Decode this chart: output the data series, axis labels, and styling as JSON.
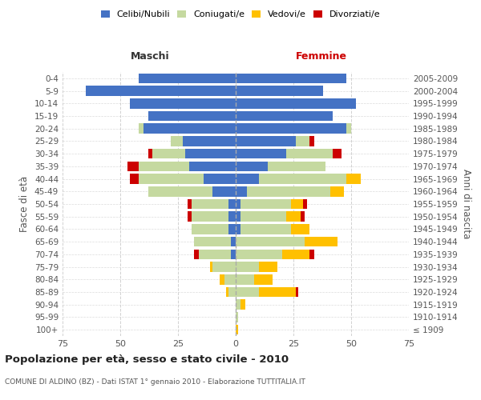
{
  "age_groups": [
    "100+",
    "95-99",
    "90-94",
    "85-89",
    "80-84",
    "75-79",
    "70-74",
    "65-69",
    "60-64",
    "55-59",
    "50-54",
    "45-49",
    "40-44",
    "35-39",
    "30-34",
    "25-29",
    "20-24",
    "15-19",
    "10-14",
    "5-9",
    "0-4"
  ],
  "birth_years": [
    "≤ 1909",
    "1910-1914",
    "1915-1919",
    "1920-1924",
    "1925-1929",
    "1930-1934",
    "1935-1939",
    "1940-1944",
    "1945-1949",
    "1950-1954",
    "1955-1959",
    "1960-1964",
    "1965-1969",
    "1970-1974",
    "1975-1979",
    "1980-1984",
    "1985-1989",
    "1990-1994",
    "1995-1999",
    "2000-2004",
    "2005-2009"
  ],
  "male": {
    "celibe": [
      0,
      0,
      0,
      0,
      0,
      0,
      2,
      2,
      3,
      3,
      3,
      10,
      14,
      20,
      22,
      23,
      40,
      38,
      46,
      65,
      42
    ],
    "coniugato": [
      0,
      0,
      0,
      3,
      5,
      10,
      14,
      16,
      16,
      16,
      16,
      28,
      28,
      22,
      14,
      5,
      2,
      0,
      0,
      0,
      0
    ],
    "vedovo": [
      0,
      0,
      0,
      1,
      2,
      1,
      0,
      0,
      0,
      0,
      0,
      0,
      0,
      0,
      0,
      0,
      0,
      0,
      0,
      0,
      0
    ],
    "divorziato": [
      0,
      0,
      0,
      0,
      0,
      0,
      2,
      0,
      0,
      2,
      2,
      0,
      4,
      5,
      2,
      0,
      0,
      0,
      0,
      0,
      0
    ]
  },
  "female": {
    "nubile": [
      0,
      0,
      0,
      0,
      0,
      0,
      0,
      0,
      2,
      2,
      2,
      5,
      10,
      14,
      22,
      26,
      48,
      42,
      52,
      38,
      48
    ],
    "coniugata": [
      0,
      1,
      2,
      10,
      8,
      10,
      20,
      30,
      22,
      20,
      22,
      36,
      38,
      25,
      20,
      6,
      2,
      0,
      0,
      0,
      0
    ],
    "vedova": [
      1,
      0,
      2,
      16,
      8,
      8,
      12,
      14,
      8,
      6,
      5,
      6,
      6,
      0,
      0,
      0,
      0,
      0,
      0,
      0,
      0
    ],
    "divorziata": [
      0,
      0,
      0,
      1,
      0,
      0,
      2,
      0,
      0,
      2,
      2,
      0,
      0,
      0,
      4,
      2,
      0,
      0,
      0,
      0,
      0
    ]
  },
  "colors": {
    "celibe": "#4472c4",
    "coniugato": "#c5d9a0",
    "vedovo": "#ffc000",
    "divorziato": "#cc0000"
  },
  "xlim": 75,
  "title": "Popolazione per età, sesso e stato civile - 2010",
  "subtitle": "COMUNE DI ALDINO (BZ) - Dati ISTAT 1° gennaio 2010 - Elaborazione TUTTITALIA.IT",
  "ylabel_left": "Fasce di età",
  "ylabel_right": "Anni di nascita",
  "xlabel_left": "Maschi",
  "xlabel_right": "Femmine",
  "bg_color": "#ffffff",
  "grid_color": "#cccccc",
  "bar_height": 0.8
}
